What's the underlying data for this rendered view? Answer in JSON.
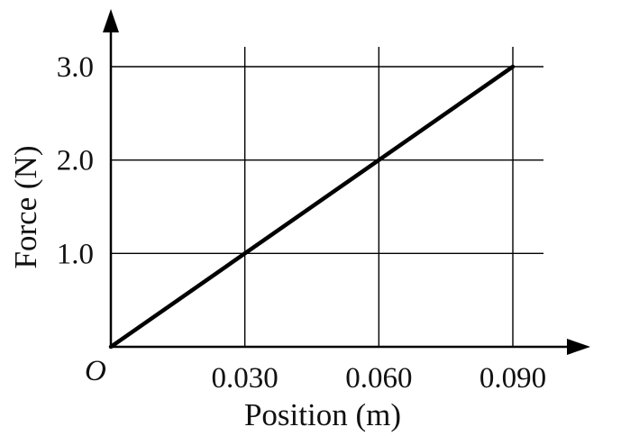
{
  "chart_data": {
    "type": "line",
    "xlabel": "Position (m)",
    "ylabel": "Force (N)",
    "origin_label": "O",
    "xlim": [
      0,
      0.09
    ],
    "ylim": [
      0,
      3.0
    ],
    "x_ticks": [
      0.03,
      0.06,
      0.09
    ],
    "x_tick_labels": [
      "0.030",
      "0.060",
      "0.090"
    ],
    "y_ticks": [
      1.0,
      2.0,
      3.0
    ],
    "y_tick_labels": [
      "1.0",
      "2.0",
      "3.0"
    ],
    "grid": true,
    "series": [
      {
        "x": [
          0,
          0.09
        ],
        "y": [
          0,
          3.0
        ]
      }
    ],
    "colors": {
      "line": "#000000",
      "grid": "#000000",
      "axis": "#000000"
    }
  }
}
